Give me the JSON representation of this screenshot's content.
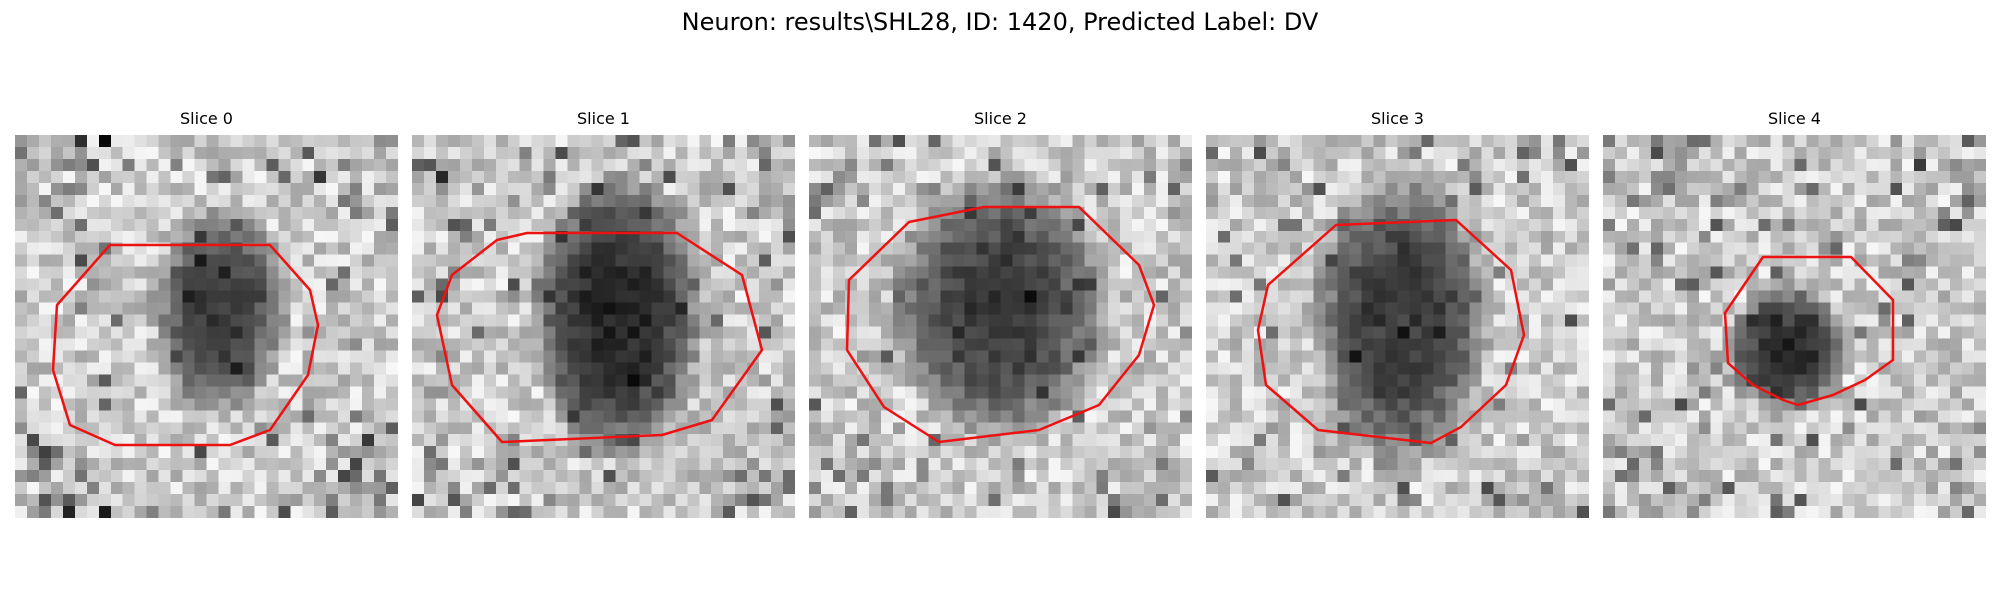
{
  "figure": {
    "title": "Neuron: results\\SHL28, ID: 1420, Predicted Label: DV",
    "outline_color": "#ee1111"
  },
  "panels": [
    {
      "label": "Slice 0"
    },
    {
      "label": "Slice 1"
    },
    {
      "label": "Slice 2"
    },
    {
      "label": "Slice 3"
    },
    {
      "label": "Slice 4"
    }
  ]
}
